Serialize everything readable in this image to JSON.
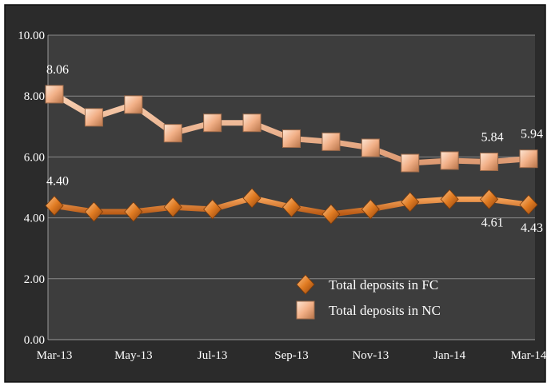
{
  "chart_data": {
    "type": "line",
    "title": "",
    "xlabel": "",
    "ylabel": "",
    "ylim": [
      0,
      10
    ],
    "yticks": [
      "0.00",
      "2.00",
      "4.00",
      "6.00",
      "8.00",
      "10.00"
    ],
    "categories": [
      "Mar-13",
      "Apr-13",
      "May-13",
      "Jun-13",
      "Jul-13",
      "Aug-13",
      "Sep-13",
      "Oct-13",
      "Nov-13",
      "Dec-13",
      "Jan-14",
      "Feb-14",
      "Mar-14"
    ],
    "xtick_labels": [
      "Mar-13",
      "",
      "May-13",
      "",
      "Jul-13",
      "",
      "Sep-13",
      "",
      "Nov-13",
      "",
      "Jan-14",
      "",
      "Mar-14"
    ],
    "grid": true,
    "legend_position": "bottom-right",
    "series": [
      {
        "name": "Total deposits in FC",
        "color": "#E07B22",
        "marker": "diamond",
        "values": [
          4.4,
          4.2,
          4.2,
          4.35,
          4.28,
          4.65,
          4.35,
          4.12,
          4.28,
          4.52,
          4.61,
          4.61,
          4.43
        ],
        "data_labels": [
          {
            "index": 0,
            "text": "4.40",
            "position": "above"
          },
          {
            "index": 11,
            "text": "4.61",
            "position": "below"
          },
          {
            "index": 12,
            "text": "4.43",
            "position": "below"
          }
        ]
      },
      {
        "name": "Total deposits in NC",
        "color": "#F4B183",
        "marker": "square",
        "values": [
          8.06,
          7.3,
          7.72,
          6.78,
          7.12,
          7.12,
          6.6,
          6.5,
          6.3,
          5.8,
          5.88,
          5.84,
          5.94
        ],
        "data_labels": [
          {
            "index": 0,
            "text": "8.06",
            "position": "above"
          },
          {
            "index": 11,
            "text": "5.84",
            "position": "above"
          },
          {
            "index": 12,
            "text": "5.94",
            "position": "above"
          }
        ]
      }
    ]
  }
}
